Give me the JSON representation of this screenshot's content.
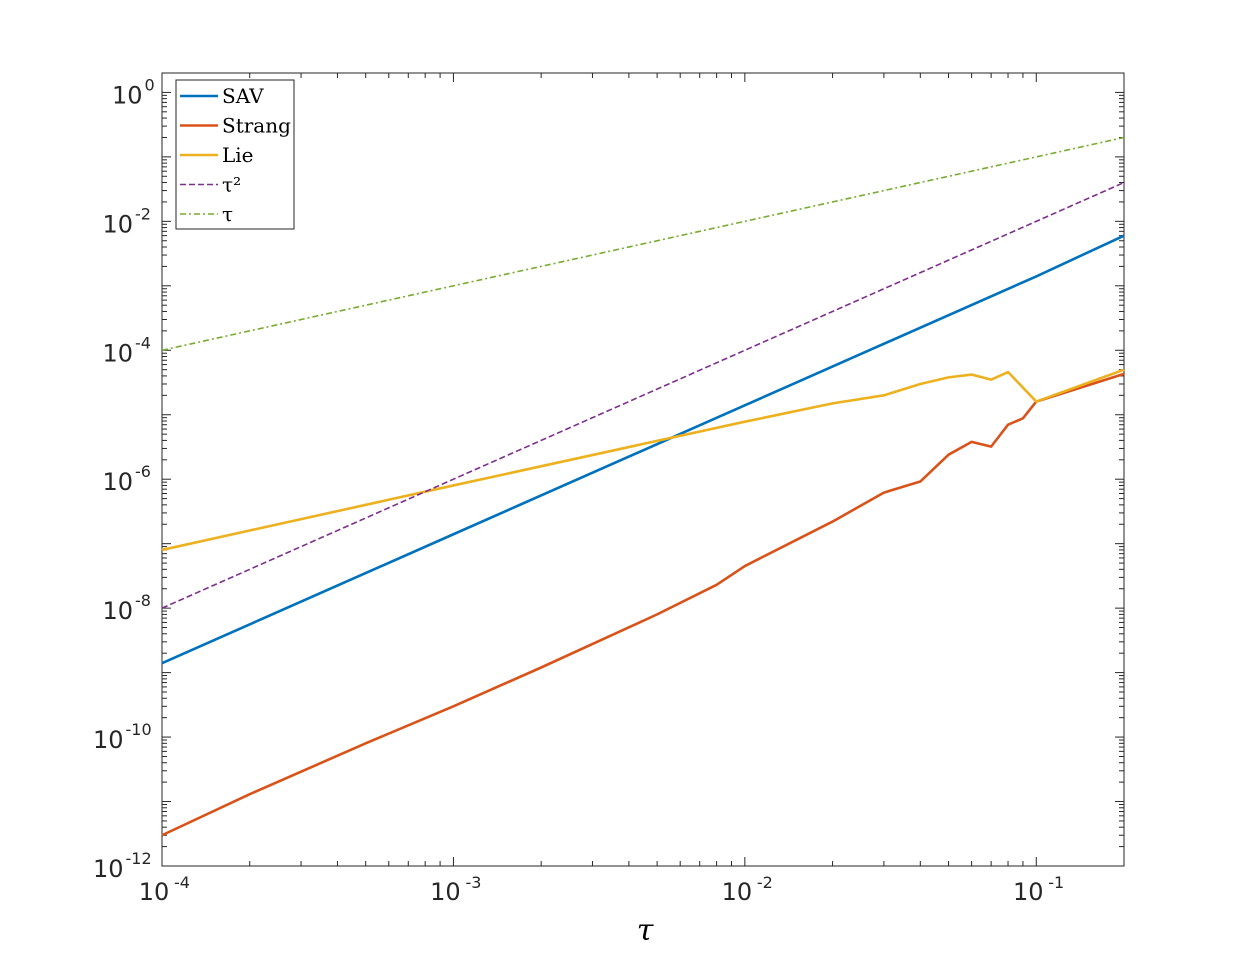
{
  "chart_data": {
    "type": "line",
    "title": "",
    "xlabel": "τ",
    "ylabel": "",
    "xscale": "log",
    "yscale": "log",
    "xlim": [
      0.0001,
      0.2
    ],
    "ylim": [
      1e-12,
      2
    ],
    "grid": false,
    "box": true,
    "legend_position": "top-left",
    "x_ticks": [
      {
        "value": 0.0001,
        "base": "10",
        "exp": "-4"
      },
      {
        "value": 0.001,
        "base": "10",
        "exp": "-3"
      },
      {
        "value": 0.01,
        "base": "10",
        "exp": "-2"
      },
      {
        "value": 0.1,
        "base": "10",
        "exp": "-1"
      }
    ],
    "y_ticks": [
      {
        "value": 1e-12,
        "base": "10",
        "exp": "-12"
      },
      {
        "value": 1e-10,
        "base": "10",
        "exp": "-10"
      },
      {
        "value": 1e-08,
        "base": "10",
        "exp": "-8"
      },
      {
        "value": 1e-06,
        "base": "10",
        "exp": "-6"
      },
      {
        "value": 0.0001,
        "base": "10",
        "exp": "-4"
      },
      {
        "value": 0.01,
        "base": "10",
        "exp": "-2"
      },
      {
        "value": 1,
        "base": "10",
        "exp": "0"
      }
    ],
    "series": [
      {
        "name": "SAV",
        "color": "#0072BD",
        "dash": "solid",
        "x": [
          0.0001,
          0.001,
          0.01,
          0.1,
          0.2
        ],
        "y": [
          1.4e-09,
          1.4e-07,
          1.4e-05,
          0.0014,
          0.006
        ]
      },
      {
        "name": "Strang",
        "color": "#D95319",
        "dash": "solid",
        "x": [
          0.0001,
          0.0002,
          0.0005,
          0.001,
          0.002,
          0.005,
          0.008,
          0.01,
          0.02,
          0.03,
          0.04,
          0.05,
          0.06,
          0.07,
          0.08,
          0.09,
          0.1,
          0.2
        ],
        "y": [
          3e-12,
          1.3e-11,
          8e-11,
          3e-10,
          1.2e-09,
          8e-09,
          2.3e-08,
          4.5e-08,
          2.2e-07,
          6.2e-07,
          9.2e-07,
          2.4e-06,
          3.8e-06,
          3.2e-06,
          7e-06,
          8.8e-06,
          1.6e-05,
          4.3e-05
        ]
      },
      {
        "name": "Lie",
        "color": "#EDB120",
        "dash": "solid",
        "x": [
          0.0001,
          0.001,
          0.01,
          0.02,
          0.03,
          0.04,
          0.05,
          0.06,
          0.07,
          0.08,
          0.1,
          0.2
        ],
        "y": [
          8e-08,
          8e-07,
          7.8e-06,
          1.5e-05,
          2e-05,
          3e-05,
          3.8e-05,
          4.2e-05,
          3.5e-05,
          4.6e-05,
          1.6e-05,
          5e-05
        ]
      },
      {
        "name": "τ²",
        "color": "#7E2F8E",
        "dash": "dashed",
        "x": [
          0.0001,
          0.2
        ],
        "y": [
          1e-08,
          0.04
        ]
      },
      {
        "name": "τ",
        "color": "#77AC30",
        "dash": "dashdot",
        "x": [
          0.0001,
          0.2
        ],
        "y": [
          0.0001,
          0.2
        ]
      }
    ]
  }
}
